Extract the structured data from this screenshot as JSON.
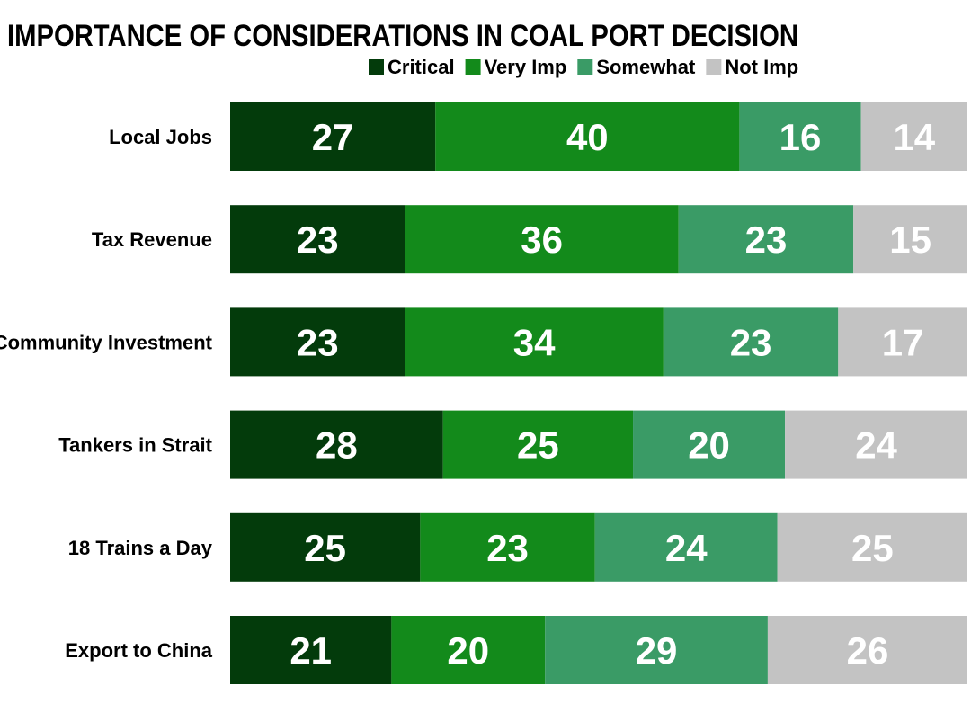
{
  "chart_data": {
    "type": "bar",
    "orientation": "horizontal",
    "stacked": true,
    "title": "IMPORTANCE OF CONSIDERATIONS IN COAL PORT DECISION",
    "categories": [
      "Local Jobs",
      "Tax Revenue",
      "Community Investment",
      "Tankers in Strait",
      "18 Trains a Day",
      "Export to China"
    ],
    "series": [
      {
        "name": "Critical",
        "color": "#033b0b",
        "values": [
          27,
          23,
          23,
          28,
          25,
          21
        ]
      },
      {
        "name": "Very Imp",
        "color": "#138a1b",
        "values": [
          40,
          36,
          34,
          25,
          23,
          20
        ]
      },
      {
        "name": "Somewhat",
        "color": "#3a9b66",
        "values": [
          16,
          23,
          23,
          20,
          24,
          29
        ]
      },
      {
        "name": "Not Imp",
        "color": "#c3c3c3",
        "values": [
          14,
          15,
          17,
          24,
          25,
          26
        ]
      }
    ],
    "legend": "top-right",
    "data_labels": true,
    "grid": false
  }
}
